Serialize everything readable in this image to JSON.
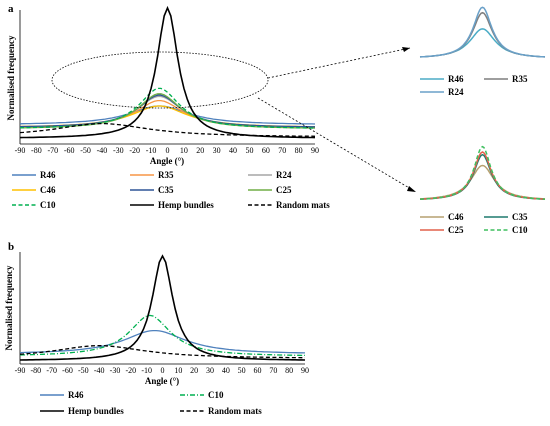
{
  "panels": {
    "a": {
      "letter": "a"
    },
    "b": {
      "letter": "b"
    }
  },
  "chart_data": [
    {
      "id": "panel-a",
      "type": "line",
      "xlabel": "Angle (°)",
      "ylabel": "Normalised frequency",
      "xlim": [
        -90,
        90
      ],
      "xticks": [
        -90,
        -80,
        -70,
        -60,
        -50,
        -40,
        -30,
        -20,
        -10,
        0,
        10,
        20,
        30,
        40,
        50,
        60,
        70,
        80,
        90
      ],
      "grid": false,
      "legend": "bottom",
      "series": [
        {
          "name": "R46",
          "color": "#4f81bd",
          "dash": "solid",
          "base": 0.14,
          "amp": 0.14,
          "width": 28,
          "center": -5
        },
        {
          "name": "R35",
          "color": "#f79646",
          "dash": "solid",
          "base": 0.12,
          "amp": 0.2,
          "width": 22,
          "center": -5
        },
        {
          "name": "R24",
          "color": "#a6a6a6",
          "dash": "solid",
          "base": 0.12,
          "amp": 0.23,
          "width": 21,
          "center": -5
        },
        {
          "name": "C46",
          "color": "#ffc000",
          "dash": "solid",
          "base": 0.12,
          "amp": 0.16,
          "width": 26,
          "center": -5
        },
        {
          "name": "C35",
          "color": "#2f5597",
          "dash": "solid",
          "base": 0.12,
          "amp": 0.24,
          "width": 20,
          "center": -5
        },
        {
          "name": "C25",
          "color": "#70ad47",
          "dash": "solid",
          "base": 0.11,
          "amp": 0.26,
          "width": 20,
          "center": -5
        },
        {
          "name": "C10",
          "color": "#00b050",
          "dash": "dashed",
          "base": 0.11,
          "amp": 0.3,
          "width": 19,
          "center": -5
        },
        {
          "name": "Hemp bundles",
          "color": "#000000",
          "dash": "solid",
          "base": 0.04,
          "amp": 0.96,
          "width": 10,
          "center": 0
        },
        {
          "name": "Random mats",
          "color": "#000000",
          "dash": "dashed",
          "base": 0.05,
          "amp": 0.1,
          "width": 45,
          "center": -40
        }
      ]
    },
    {
      "id": "panel-b",
      "type": "line",
      "xlabel": "Angle (°)",
      "ylabel": "Normalised frequency",
      "xlim": [
        -90,
        90
      ],
      "xticks": [
        -90,
        -80,
        -70,
        -60,
        -50,
        -40,
        -30,
        -20,
        -10,
        0,
        10,
        20,
        30,
        40,
        50,
        60,
        70,
        80,
        90
      ],
      "grid": false,
      "legend": "bottom",
      "series": [
        {
          "name": "R46",
          "color": "#4f81bd",
          "dash": "solid",
          "base": 0.09,
          "amp": 0.22,
          "width": 30,
          "center": -5
        },
        {
          "name": "C10",
          "color": "#00b050",
          "dash": "dashdot",
          "base": 0.07,
          "amp": 0.38,
          "width": 20,
          "center": -8
        },
        {
          "name": "Hemp bundles",
          "color": "#000000",
          "dash": "solid",
          "base": 0.03,
          "amp": 0.97,
          "width": 10,
          "center": 0
        },
        {
          "name": "Random mats",
          "color": "#000000",
          "dash": "dashed",
          "base": 0.05,
          "amp": 0.12,
          "width": 45,
          "center": -40
        }
      ]
    },
    {
      "id": "inset-r",
      "type": "line",
      "legend": "bottom",
      "series": [
        {
          "name": "R46",
          "color": "#4bacc6",
          "dash": "solid",
          "base": 0.1,
          "amp": 0.55,
          "width": 28
        },
        {
          "name": "R35",
          "color": "#7f7f7f",
          "dash": "solid",
          "base": 0.1,
          "amp": 0.85,
          "width": 22
        },
        {
          "name": "R24",
          "color": "#6aa0c8",
          "dash": "solid",
          "base": 0.1,
          "amp": 0.95,
          "width": 21
        }
      ]
    },
    {
      "id": "inset-c",
      "type": "line",
      "legend": "bottom",
      "series": [
        {
          "name": "C46",
          "color": "#b6a070",
          "dash": "solid",
          "base": 0.1,
          "amp": 0.65,
          "width": 26
        },
        {
          "name": "C35",
          "color": "#1f7a6e",
          "dash": "solid",
          "base": 0.1,
          "amp": 0.85,
          "width": 20
        },
        {
          "name": "C25",
          "color": "#e2614b",
          "dash": "solid",
          "base": 0.1,
          "amp": 0.9,
          "width": 20
        },
        {
          "name": "C10",
          "color": "#3fbf5f",
          "dash": "dashed",
          "base": 0.1,
          "amp": 1.0,
          "width": 19
        }
      ]
    }
  ]
}
